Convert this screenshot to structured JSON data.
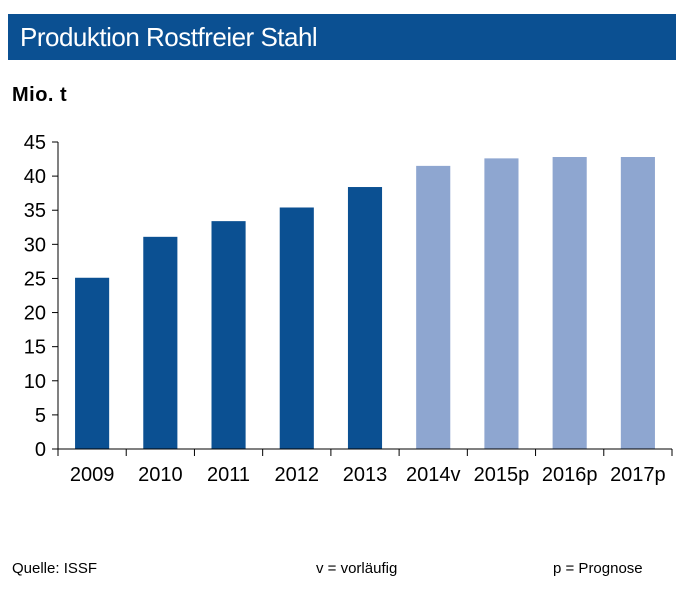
{
  "header": {
    "title": "Produktion Rostfreier Stahl"
  },
  "unit": "Mio. t",
  "footer": {
    "source": "Quelle:  ISSF",
    "note_v": "v = vorläufig",
    "note_p": "p = Prognose"
  },
  "colors": {
    "header_bg": "#0b5092",
    "actual": "#0b5092",
    "forecast": "#8ea6d0",
    "axis": "#000000"
  },
  "chart_data": {
    "type": "bar",
    "title": "Produktion Rostfreier Stahl",
    "ylabel": "Mio. t",
    "xlabel": "",
    "categories": [
      "2009",
      "2010",
      "2011",
      "2012",
      "2013",
      "2014v",
      "2015p",
      "2016p",
      "2017p"
    ],
    "values": [
      25.1,
      31.1,
      33.4,
      35.4,
      38.4,
      41.5,
      42.6,
      42.8,
      42.8
    ],
    "bar_kind": [
      "actual",
      "actual",
      "actual",
      "actual",
      "actual",
      "forecast",
      "forecast",
      "forecast",
      "forecast"
    ],
    "ylim": [
      0,
      45
    ],
    "yticks": [
      0,
      5,
      10,
      15,
      20,
      25,
      30,
      35,
      40,
      45
    ],
    "grid": false,
    "legend": "none"
  }
}
